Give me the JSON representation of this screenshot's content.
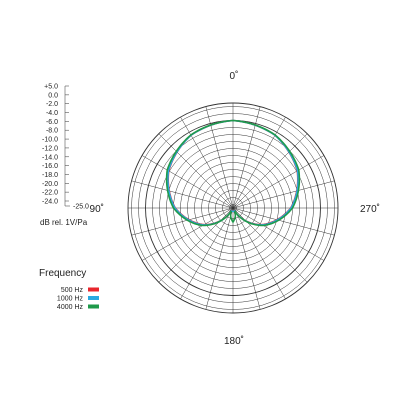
{
  "chart_data": {
    "type": "polar",
    "angle_labels": [
      "0˚",
      "90˚",
      "180˚",
      "270˚"
    ],
    "scale_labels": [
      "+5.0",
      "0.0",
      "-2.0",
      "-4.0",
      "-6.0",
      "-8.0",
      "-10.0",
      "-12.0",
      "-14.0",
      "-16.0",
      "-18.0",
      "-20.0",
      "-22.0",
      "-24.0",
      "-25.0"
    ],
    "ylabel": "dB rel. 1V/Pa",
    "rlim": [
      -25,
      5
    ],
    "grid": true,
    "legend": {
      "title": "Frequency",
      "placement": "bottom-left"
    },
    "series": [
      {
        "name": "500 Hz",
        "color": "#e8262d",
        "angles_deg": [
          0,
          30,
          60,
          90,
          120,
          150,
          165,
          180
        ],
        "db": [
          0.0,
          -1.0,
          -3.8,
          -8.5,
          -15.5,
          -24.0,
          -24.0,
          -24.0
        ]
      },
      {
        "name": "1000 Hz",
        "color": "#29a9e1",
        "angles_deg": [
          0,
          30,
          60,
          90,
          120,
          150,
          165,
          180
        ],
        "db": [
          0.0,
          -1.0,
          -3.7,
          -8.4,
          -15.3,
          -24.0,
          -24.0,
          -24.0
        ]
      },
      {
        "name": "4000 Hz",
        "color": "#1f9a4a",
        "angles_deg": [
          0,
          30,
          60,
          90,
          120,
          150,
          165,
          180
        ],
        "db": [
          0.0,
          -0.9,
          -3.3,
          -8.0,
          -15.0,
          -24.0,
          -22.5,
          -21.0
        ]
      }
    ]
  }
}
